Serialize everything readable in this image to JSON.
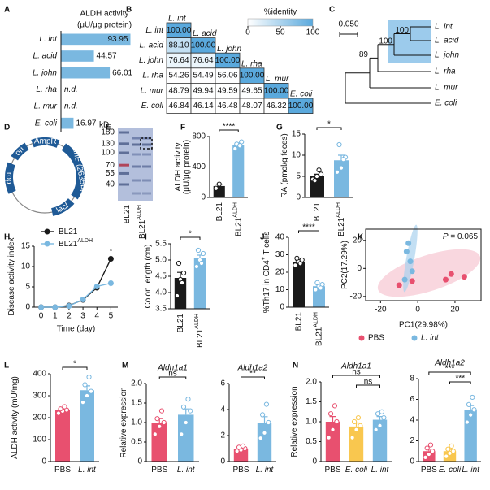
{
  "chart_data": [
    {
      "panel": "A",
      "type": "bar",
      "orientation": "horizontal",
      "title": "ALDH activity",
      "subtitle": "(μU/μg protein)",
      "categories": [
        "L. int",
        "L. acid",
        "L. john",
        "L. rha",
        "L. mur",
        "E. coli"
      ],
      "values": [
        93.95,
        44.57,
        66.01,
        null,
        null,
        16.97
      ],
      "value_labels": [
        "93.95",
        "44.57",
        "66.01",
        "n.d.",
        "n.d.",
        "16.97"
      ],
      "color": "#7ab8e0",
      "xlim": [
        0,
        100
      ]
    },
    {
      "panel": "F",
      "type": "bar",
      "ylabel": "ALDH activity",
      "ylabel2": "(μU/μg protein)",
      "categories": [
        "BL21",
        "BL21"
      ],
      "category_superscripts": [
        null,
        "ALDH"
      ],
      "values": [
        150,
        690
      ],
      "errors": [
        25,
        20
      ],
      "points": [
        [
          120,
          175
        ],
        [
          640,
          690,
          730,
          700,
          680
        ]
      ],
      "colors": [
        "#1a1a1a",
        "#7ab8e0"
      ],
      "ylim": [
        0,
        800
      ],
      "yticks": [
        0,
        400,
        800
      ],
      "annotations": [
        {
          "text": "****",
          "pair": [
            0,
            1
          ]
        }
      ]
    },
    {
      "panel": "G",
      "type": "bar",
      "ylabel": "RA (pmol/g feces)",
      "categories": [
        "BL21",
        "BL21"
      ],
      "category_superscripts": [
        null,
        "ALDH"
      ],
      "values": [
        5.1,
        8.8
      ],
      "errors": [
        0.4,
        1.2
      ],
      "points": [
        [
          4.3,
          5.0,
          5.5,
          4.0,
          6.5
        ],
        [
          6.0,
          7.0,
          9.5,
          12.5,
          9.0
        ]
      ],
      "colors": [
        "#1a1a1a",
        "#7ab8e0"
      ],
      "ylim": [
        0,
        15
      ],
      "yticks": [
        0,
        5,
        10,
        15
      ],
      "annotations": [
        {
          "text": "*",
          "pair": [
            0,
            1
          ]
        }
      ]
    },
    {
      "panel": "H",
      "type": "line",
      "xlabel": "Time (day)",
      "ylabel": "Disease activity index",
      "x": [
        0,
        1,
        2,
        3,
        4,
        5
      ],
      "xlim": [
        -0.5,
        5.5
      ],
      "xticks": [
        0,
        1,
        2,
        3,
        4,
        5
      ],
      "ylim": [
        0,
        15
      ],
      "yticks": [
        0,
        5,
        10,
        15
      ],
      "series": [
        {
          "name": "BL21",
          "name_superscript": null,
          "color": "#1a1a1a",
          "values": [
            0,
            0,
            0.4,
            1.8,
            4.8,
            11.9
          ],
          "errors": [
            0,
            0,
            0.2,
            0.3,
            0.4,
            0.8
          ]
        },
        {
          "name": "BL21",
          "name_superscript": "ALDH",
          "color": "#7ab8e0",
          "values": [
            0,
            0,
            0.3,
            1.9,
            5.1,
            5.9
          ],
          "errors": [
            0,
            0,
            0.2,
            0.3,
            0.4,
            0.9
          ]
        }
      ],
      "annotations": [
        {
          "text": "*",
          "x": 5
        }
      ]
    },
    {
      "panel": "I",
      "type": "bar",
      "ylabel": "Colon length (cm)",
      "categories": [
        "BL21",
        "BL21"
      ],
      "category_superscripts": [
        null,
        "ALDH"
      ],
      "values": [
        4.45,
        5.05
      ],
      "errors": [
        0.17,
        0.1
      ],
      "points": [
        [
          3.9,
          4.4,
          4.6,
          4.9,
          4.3
        ],
        [
          4.8,
          5.0,
          5.2,
          5.3,
          4.9
        ]
      ],
      "colors": [
        "#1a1a1a",
        "#7ab8e0"
      ],
      "ylim": [
        3.5,
        5.5
      ],
      "yticks": [
        3.5,
        {
          "value": 4,
          "label": "4.0"
        },
        4.5,
        {
          "value": 5,
          "label": "5.0"
        },
        5.5
      ],
      "annotations": [
        {
          "text": "*",
          "pair": [
            0,
            1
          ]
        }
      ]
    },
    {
      "panel": "J",
      "type": "bar",
      "ylabel": "%Th17 in CD4",
      "ylabel_sup": "+",
      "ylabel_tail": " T cells",
      "categories": [
        "BL21",
        "BL21"
      ],
      "category_superscripts": [
        null,
        "ALDH"
      ],
      "values": [
        26,
        12
      ],
      "errors": [
        0.7,
        0.7
      ],
      "points": [
        [
          24,
          26,
          27,
          28,
          25
        ],
        [
          10,
          12,
          13,
          14,
          11
        ]
      ],
      "colors": [
        "#1a1a1a",
        "#7ab8e0"
      ],
      "ylim": [
        0,
        40
      ],
      "yticks": [
        0,
        10,
        20,
        30,
        40
      ],
      "annotations": [
        {
          "text": "****",
          "pair": [
            0,
            1
          ]
        }
      ]
    },
    {
      "panel": "K",
      "type": "scatter",
      "xlabel": "PC1(29.98%)",
      "ylabel": "PC2(17.29%)",
      "annotation_italic": "P",
      "annotation_text": " = 0.065",
      "xlim": [
        -28,
        34
      ],
      "xticks": [
        -20,
        0,
        20
      ],
      "ylim": [
        -23,
        28
      ],
      "yticks": [
        -20,
        0,
        20
      ],
      "series": [
        {
          "name": "PBS",
          "color": "#e8506f",
          "x": [
            18,
            15,
            -3,
            -10,
            25
          ],
          "values": [
            -4,
            -8,
            -9,
            -12,
            -6
          ]
        },
        {
          "name": "L. int",
          "color": "#7ab8e0",
          "x": [
            -5,
            -6,
            -4,
            -3,
            -7
          ],
          "values": [
            18,
            12,
            5,
            -2,
            -8
          ]
        }
      ]
    },
    {
      "panel": "L",
      "type": "bar",
      "ylabel": "ALDH activity (mU/mg)",
      "categories": [
        "PBS",
        "L. int"
      ],
      "values": [
        235,
        325
      ],
      "errors": [
        6,
        20
      ],
      "points": [
        [
          220,
          230,
          235,
          240,
          250
        ],
        [
          270,
          300,
          320,
          350,
          385
        ]
      ],
      "colors": [
        "#e8506f",
        "#7ab8e0"
      ],
      "ylim": [
        0,
        400
      ],
      "yticks": [
        0,
        100,
        200,
        300,
        400
      ],
      "annotations": [
        {
          "text": "*",
          "pair": [
            0,
            1
          ]
        }
      ]
    },
    {
      "panel": "M",
      "type": "bar",
      "title": "Aldh1a1",
      "ylabel": "Relative expression",
      "categories": [
        "PBS",
        "L. int"
      ],
      "values": [
        1.0,
        1.2
      ],
      "errors": [
        0.1,
        0.15
      ],
      "points": [
        [
          0.7,
          0.9,
          1.0,
          1.1,
          1.3
        ],
        [
          0.7,
          1.0,
          1.3,
          1.4,
          1.6
        ]
      ],
      "colors": [
        "#e8506f",
        "#7ab8e0"
      ],
      "ylim": [
        0,
        2
      ],
      "yticks": [
        0,
        0.5,
        {
          "value": 1,
          "label": "1.0"
        },
        1.5,
        {
          "value": 2,
          "label": "2.0"
        }
      ],
      "annotations": [
        {
          "text": "ns",
          "pair": [
            0,
            1
          ]
        }
      ]
    },
    {
      "type": "bar",
      "title": "Aldh1a2",
      "categories": [
        "PBS",
        "L. int"
      ],
      "values": [
        1.0,
        3.0
      ],
      "errors": [
        0.07,
        0.45
      ],
      "points": [
        [
          0.8,
          0.9,
          1.0,
          1.1,
          1.2
        ],
        [
          1.8,
          2.2,
          3.0,
          3.6,
          4.4
        ]
      ],
      "colors": [
        "#e8506f",
        "#7ab8e0"
      ],
      "ylim": [
        0,
        6
      ],
      "yticks": [
        0,
        2,
        4,
        6
      ],
      "annotations": [
        {
          "text": "**",
          "pair": [
            0,
            1
          ]
        }
      ]
    },
    {
      "panel": "N",
      "type": "bar",
      "title": "Aldh1a1",
      "ylabel": "Relative expression",
      "categories": [
        "PBS",
        "E. coli",
        "L. int"
      ],
      "values": [
        1.0,
        0.88,
        1.05
      ],
      "errors": [
        0.13,
        0.09,
        0.08
      ],
      "points": [
        [
          0.6,
          0.8,
          1.0,
          1.2,
          1.4
        ],
        [
          0.6,
          0.8,
          0.9,
          1.0,
          1.1
        ],
        [
          0.8,
          0.9,
          1.1,
          1.2,
          1.25
        ]
      ],
      "colors": [
        "#e8506f",
        "#f9c74f",
        "#7ab8e0"
      ],
      "ylim": [
        0,
        2
      ],
      "yticks": [
        0,
        0.5,
        {
          "value": 1,
          "label": "1.0"
        },
        1.5,
        {
          "value": 2,
          "label": "2.0"
        }
      ],
      "annotations": [
        {
          "text": "ns",
          "pair": [
            0,
            2
          ]
        },
        {
          "text": "ns",
          "pair": [
            1,
            2
          ]
        }
      ]
    },
    {
      "type": "bar",
      "title": "Aldh1a2",
      "categories": [
        "PBS",
        "E. coli",
        "L. int"
      ],
      "values": [
        1.0,
        1.0,
        5.0
      ],
      "errors": [
        0.2,
        0.17,
        0.4
      ],
      "points": [
        [
          0.4,
          0.7,
          1.0,
          1.3,
          1.6
        ],
        [
          0.5,
          0.8,
          1.0,
          1.2,
          1.5
        ],
        [
          3.8,
          4.5,
          5.0,
          5.5,
          6.2
        ]
      ],
      "colors": [
        "#e8506f",
        "#f9c74f",
        "#7ab8e0"
      ],
      "ylim": [
        0,
        8
      ],
      "yticks": [
        0,
        2,
        4,
        6,
        8
      ],
      "annotations": [
        {
          "text": "***",
          "pair": [
            0,
            2
          ]
        },
        {
          "text": "***",
          "pair": [
            1,
            2
          ]
        }
      ]
    }
  ],
  "identity_matrix": {
    "panel": "B",
    "title": "%identity",
    "labels": [
      "L. int",
      "L. acid",
      "L. john",
      "L. rha",
      "L. mur",
      "E. coli"
    ],
    "rows": [
      [
        "100.00"
      ],
      [
        "88.10",
        "100.00"
      ],
      [
        "76.64",
        "76.64",
        "100.00"
      ],
      [
        "54.26",
        "54.49",
        "56.06",
        "100.00"
      ],
      [
        "48.79",
        "49.94",
        "49.59",
        "49.65",
        "100.00"
      ],
      [
        "46.84",
        "46.14",
        "46.48",
        "48.07",
        "46.32",
        "100.00"
      ]
    ],
    "colorbar_range": [
      0,
      100
    ],
    "colorbar_ticks": [
      0,
      50,
      100
    ],
    "colors": [
      "#ffffff",
      "#5aa9dd"
    ]
  },
  "tree": {
    "panel": "C",
    "scale_label": "0.050",
    "bootstrap": [
      "100",
      "100",
      "89"
    ],
    "leaves": [
      "L. int",
      "L. acid",
      "L. john",
      "L. rha",
      "L. mur",
      "E. coli"
    ]
  },
  "plasmid": {
    "panel": "D",
    "features": [
      "AmpR",
      "ori",
      "rop",
      "lacI",
      "adhE (2635bp)"
    ]
  },
  "gel": {
    "panel": "E",
    "unit": "kD",
    "markers": [
      180,
      130,
      100,
      70,
      55,
      40
    ],
    "lanes": [
      "BL21",
      "BL21"
    ],
    "lane_superscripts": [
      null,
      "ALDH"
    ]
  }
}
